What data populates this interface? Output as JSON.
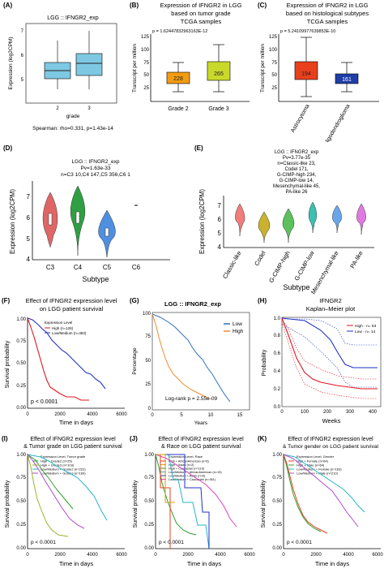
{
  "panels": {
    "A": {
      "label": "(A)",
      "title": "LGG :: IFNGR2_exp",
      "ylabel": "Expression (log2CPM)",
      "xlabel": "grade",
      "xticks": [
        "2",
        "3"
      ],
      "yticks": [
        "5",
        "6",
        "7"
      ],
      "footer": "Spearman: rho=0.331, p=1.43e-14"
    },
    "B": {
      "label": "(B)",
      "title_lines": [
        "Expression of IFNGR2 in LGG",
        "based on tumor grade",
        "TCGA samples"
      ],
      "pval": "p = 1.62447832963163E-12",
      "ylabel": "Transcript per million",
      "yticks": [
        "25",
        "50",
        "75",
        "100",
        "125"
      ],
      "xticks": [
        "Grade 2",
        "Grade 3"
      ],
      "medians": [
        "228",
        "265"
      ],
      "colors": [
        "#f39c12",
        "#c9d92a"
      ]
    },
    "C": {
      "label": "(C)",
      "title_lines": [
        "Expression of IFNGR2 in LGG",
        "based on histological subtypes",
        "TCGA samples"
      ],
      "pval": "p = 5.24109977639853E-10",
      "ylabel": "Transcript per million",
      "yticks": [
        "25",
        "50",
        "75",
        "100",
        "125"
      ],
      "xticks": [
        "Astrocytoma",
        "Oligodendroglioma"
      ],
      "medians": [
        "194",
        "161"
      ],
      "colors": [
        "#e8401c",
        "#1f3ea8"
      ]
    },
    "D": {
      "label": "(D)",
      "title_lines": [
        "LGG :: IFNGR2_exp",
        "Pv=1.63e-33",
        "n=C3 10,C4 147,C5 356,C6 1"
      ],
      "ylabel": "Expression (log2CPM)",
      "xlabel": "Subtype",
      "yticks": [
        "4",
        "5",
        "6",
        "7"
      ],
      "xticks": [
        "C3",
        "C4",
        "C5",
        "C6"
      ],
      "colors": [
        "#e06666",
        "#2ea043",
        "#4f8fe0"
      ]
    },
    "E": {
      "label": "(E)",
      "title_lines": [
        "LGG :: IFNGR2_exp",
        "Pv=3.77e-35",
        "n=Classic-like 23,",
        "Codel 171,",
        "G-CIMP-high 234,",
        "G-CIMP-low 14,",
        "Mesenchymal-like 45,",
        "PA-like 26"
      ],
      "ylabel": "Expression (log2CPM)",
      "xlabel": "Subtype",
      "yticks": [
        "4",
        "5",
        "6",
        "7"
      ],
      "xticks": [
        "Classic-like",
        "Codel",
        "G-CIMP-high",
        "G-CIMP-low",
        "Mesenchymal-like",
        "PA-like"
      ],
      "colors": [
        "#f07c7c",
        "#c9b22e",
        "#5cc15c",
        "#3cc0b0",
        "#6aa6ea",
        "#e07ae0"
      ]
    },
    "F": {
      "label": "(F)",
      "title_lines": [
        "Effect of IFNGR2 expression level",
        "on LGG patient survival"
      ],
      "legend_title": "Expression Level",
      "legend": [
        "High (n=128)",
        "Low/Medium (n=383)"
      ],
      "pval": "p < 0.0001",
      "ylabel": "Survival probability",
      "xlabel": "Time in days",
      "yticks": [
        "0.00",
        "0.25",
        "0.50",
        "0.75",
        "1.00"
      ],
      "xticks": [
        "0",
        "2000",
        "4000",
        "6000"
      ]
    },
    "G": {
      "label": "(G)",
      "title": "LGG :: IFNGR2_exp",
      "legend": [
        "Low",
        "High"
      ],
      "pval": "Log-rank p = 2.55e-09",
      "ylabel": "Percentage",
      "xlabel": "Years",
      "yticks": [
        "0",
        "25",
        "50",
        "75",
        "100"
      ],
      "xticks": [
        "0",
        "5",
        "10",
        "15"
      ]
    },
    "H": {
      "label": "(H)",
      "title_lines": [
        "IFNGR2",
        "Kaplan–Meier plot"
      ],
      "legend": [
        "High - n= 63",
        "Low - n= 14"
      ],
      "ylabel": "Probability",
      "xlabel": "Weeks",
      "yticks": [
        "0.0",
        "0.2",
        "0.4",
        "0.6",
        "0.8",
        "1.0"
      ],
      "xticks": [
        "0",
        "100",
        "200",
        "300",
        "400"
      ]
    },
    "I": {
      "label": "(I)",
      "title_lines": [
        "Effect of IFNGR2 expression level",
        "& Tumor grade on LGG patient survival"
      ],
      "legend_title": "Expression Level, Tumor grade",
      "legend": [
        "High + Grade2 (n=25)",
        "High + Grade3 (n=103)",
        "Low/Medium + Grade2 (n=222)",
        "Low/Medium + Grade3 (n=160)"
      ],
      "pval": "p < 0.0001",
      "ylabel": "Survival probability",
      "xlabel": "Time in days",
      "yticks": [
        "0.00",
        "0.25",
        "0.50",
        "0.75",
        "1.00"
      ],
      "xticks": [
        "0",
        "2000",
        "4000",
        "6000"
      ]
    },
    "J": {
      "label": "(J)",
      "title_lines": [
        "Effect of IFNGR2 expression level",
        "& Race on LGG patient survival"
      ],
      "legend_title": "Expression Level, Race",
      "legend": [
        "High + AfricanAmerican (n=6)",
        "High + Asian (n=2)",
        "High + Caucasian (n=119)",
        "Low/Medium + AfricanAmerican (n=15)",
        "Low/Medium + Asian (n=6)",
        "Low/Medium + Caucasian (n=351)"
      ],
      "pval": "p < 0.0001",
      "ylabel": "Survival probability",
      "xlabel": "Time in days",
      "yticks": [
        "0.00",
        "0.25",
        "0.50",
        "0.75",
        "1.00"
      ],
      "xticks": [
        "0",
        "2000",
        "4000",
        "6000"
      ]
    },
    "K": {
      "label": "(K)",
      "title_lines": [
        "Effect of IFNGR2 expression level",
        "& Tumor gender on LGG patient survival"
      ],
      "legend_title": "Expression Level, Gender",
      "legend": [
        "High + Female (n=64)",
        "High + Male (n=64)",
        "Low/Medium + Female (n=163)",
        "Low/Medium + Male (n=210)"
      ],
      "pval": "p < 0.0001",
      "ylabel": "Survival probability",
      "xlabel": "Time in days",
      "yticks": [
        "0.00",
        "0.25",
        "0.50",
        "0.75",
        "1.00"
      ],
      "xticks": [
        "0",
        "2000",
        "4000",
        "6000"
      ]
    }
  },
  "chart_data": [
    {
      "type": "box",
      "panel": "A",
      "categories": [
        "2",
        "3"
      ],
      "ylim": [
        4.4,
        7.2
      ],
      "boxes": [
        {
          "q1": 5.0,
          "median": 5.25,
          "q3": 5.55,
          "low": 4.6,
          "high": 6.25
        },
        {
          "q1": 5.25,
          "median": 5.55,
          "q3": 5.95,
          "low": 4.6,
          "high": 6.75
        }
      ]
    },
    {
      "type": "box",
      "panel": "B",
      "categories": [
        "Grade 2",
        "Grade 3"
      ],
      "ylim": [
        0,
        125
      ],
      "boxes": [
        {
          "q1": 35,
          "median": 44,
          "q3": 57,
          "low": 18,
          "high": 76
        },
        {
          "q1": 44,
          "median": 58,
          "q3": 77,
          "low": 18,
          "high": 110
        }
      ]
    },
    {
      "type": "box",
      "panel": "C",
      "categories": [
        "Astrocytoma",
        "Oligodendroglioma"
      ],
      "ylim": [
        0,
        125
      ],
      "boxes": [
        {
          "q1": 42,
          "median": 57,
          "q3": 78,
          "low": 10,
          "high": 118
        },
        {
          "q1": 38,
          "median": 45,
          "q3": 55,
          "low": 18,
          "high": 78
        }
      ]
    }
  ]
}
